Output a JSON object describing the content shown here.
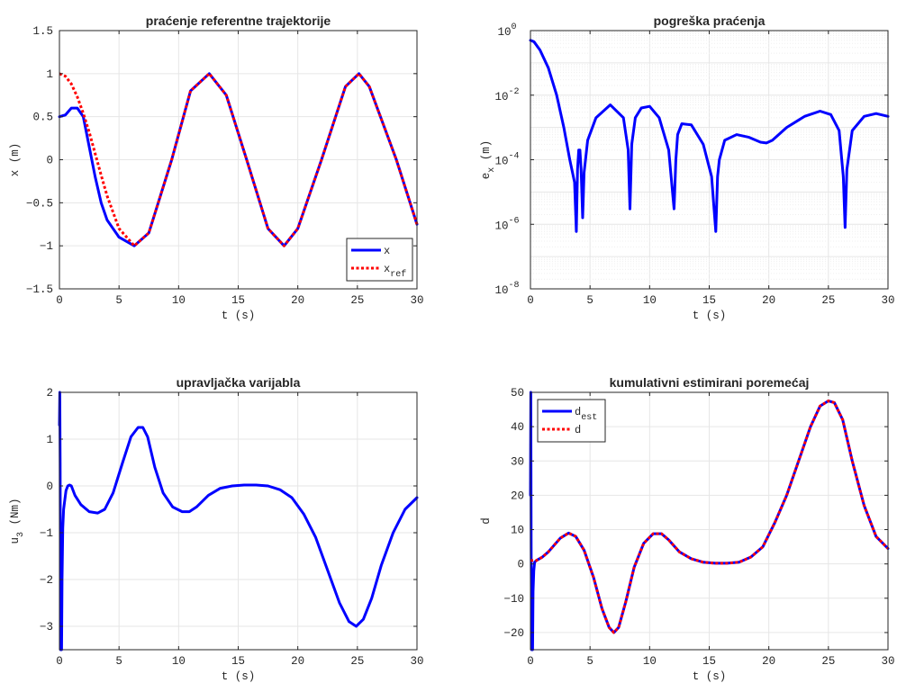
{
  "chart_data": [
    {
      "id": "tracking",
      "type": "line",
      "title": "praćenje referentne trajektorije",
      "xlabel": "t  (s)",
      "ylabel": "x  (m)",
      "xlim": [
        0,
        30
      ],
      "ylim": [
        -1.5,
        1.5
      ],
      "yscale": "linear",
      "xticks": [
        "0",
        "5",
        "10",
        "15",
        "20",
        "25",
        "30"
      ],
      "yticks": [
        "−1.5",
        "−1",
        "−0.5",
        "0",
        "0.5",
        "1",
        "1.5"
      ],
      "grid": true,
      "legend": {
        "location": "bottom-right",
        "entries": [
          "x",
          "x_ref"
        ]
      },
      "series": [
        {
          "name": "x",
          "color": "#0000ff",
          "style": "solid",
          "x": [
            0,
            0.5,
            1.0,
            1.5,
            2.0,
            2.5,
            3.0,
            3.5,
            4.0,
            5.0,
            6.28,
            7.5,
            9.42,
            11.0,
            12.57,
            14.0,
            15.71,
            17.5,
            18.85,
            20.0,
            21.99,
            24.0,
            25.13,
            26.0,
            28.27,
            30.0
          ],
          "y": [
            0.5,
            0.52,
            0.6,
            0.6,
            0.5,
            0.15,
            -0.2,
            -0.5,
            -0.7,
            -0.9,
            -1.0,
            -0.85,
            0.0,
            0.8,
            1.0,
            0.75,
            0.0,
            -0.8,
            -1.0,
            -0.8,
            0.0,
            0.85,
            1.0,
            0.85,
            0.0,
            -0.75
          ]
        },
        {
          "name": "x_ref",
          "color": "#ff0000",
          "style": "dotted",
          "x": [
            0,
            0.5,
            1.0,
            1.5,
            2.0,
            2.5,
            3.0,
            3.5,
            4.0,
            5.0,
            6.28,
            7.5,
            9.42,
            11.0,
            12.57,
            14.0,
            15.71,
            17.5,
            18.85,
            20.0,
            21.99,
            24.0,
            25.13,
            26.0,
            28.27,
            30.0
          ],
          "y": [
            1.0,
            0.97,
            0.88,
            0.73,
            0.54,
            0.32,
            0.07,
            -0.18,
            -0.42,
            -0.8,
            -1.0,
            -0.85,
            0.0,
            0.8,
            1.0,
            0.75,
            0.0,
            -0.8,
            -1.0,
            -0.8,
            0.0,
            0.85,
            1.0,
            0.85,
            0.0,
            -0.75
          ]
        }
      ]
    },
    {
      "id": "error",
      "type": "line",
      "title": "pogreška praćenja",
      "xlabel": "t  (s)",
      "ylabel": "e_x  (m)",
      "xlim": [
        0,
        30
      ],
      "ylim": [
        1e-08,
        1
      ],
      "yscale": "log",
      "xticks": [
        "0",
        "5",
        "10",
        "15",
        "20",
        "25",
        "30"
      ],
      "yticks": [
        "10^-8",
        "10^-6",
        "10^-4",
        "10^-2",
        "10^0"
      ],
      "grid": true,
      "series": [
        {
          "name": "",
          "color": "#0000ff",
          "style": "solid",
          "x": [
            0,
            0.3,
            0.8,
            1.5,
            2.2,
            2.8,
            3.3,
            3.7,
            3.85,
            3.95,
            4.05,
            4.15,
            4.25,
            4.38,
            4.5,
            4.8,
            5.5,
            6.7,
            7.8,
            8.2,
            8.35,
            8.5,
            8.8,
            9.3,
            10.0,
            10.8,
            11.6,
            12.05,
            12.2,
            12.35,
            12.7,
            13.5,
            14.5,
            15.2,
            15.55,
            15.7,
            15.85,
            16.3,
            17.3,
            18.3,
            19.3,
            19.8,
            20.3,
            21.5,
            23.0,
            24.3,
            25.2,
            25.9,
            26.25,
            26.4,
            26.55,
            27.0,
            28.0,
            29.0,
            30.0
          ],
          "y": [
            0.5,
            0.45,
            0.25,
            0.07,
            0.01,
            0.001,
            0.0001,
            2e-05,
            6e-07,
            5e-05,
            0.0002,
            0.0002,
            5e-05,
            1.6e-06,
            4e-05,
            0.0004,
            0.002,
            0.005,
            0.002,
            0.0002,
            3e-06,
            0.0003,
            0.002,
            0.004,
            0.0045,
            0.002,
            0.0002,
            3e-06,
            0.0001,
            0.0006,
            0.0013,
            0.0012,
            0.0003,
            3e-05,
            6e-07,
            3e-05,
            0.0001,
            0.0004,
            0.0006,
            0.0005,
            0.00035,
            0.00033,
            0.0004,
            0.001,
            0.0022,
            0.0032,
            0.0025,
            0.0008,
            3e-05,
            8e-07,
            5e-05,
            0.0008,
            0.0022,
            0.0027,
            0.0022
          ]
        }
      ]
    },
    {
      "id": "control",
      "type": "line",
      "title": "upravljačka varijabla",
      "xlabel": "t  (s)",
      "ylabel": "u_3  (Nm)",
      "xlim": [
        0,
        30
      ],
      "ylim": [
        -3.5,
        2
      ],
      "yscale": "linear",
      "xticks": [
        "0",
        "5",
        "10",
        "15",
        "20",
        "25",
        "30"
      ],
      "yticks": [
        "−3",
        "−2",
        "−1",
        "0",
        "1",
        "2"
      ],
      "grid": true,
      "series": [
        {
          "name": "",
          "color": "#0000ff",
          "style": "solid",
          "x": [
            0,
            0.03,
            0.06,
            0.1,
            0.14,
            0.18,
            0.22,
            0.28,
            0.35,
            0.45,
            0.55,
            0.7,
            0.85,
            1.0,
            1.3,
            1.8,
            2.5,
            3.2,
            3.8,
            4.5,
            5.3,
            6.0,
            6.6,
            7.0,
            7.4,
            8.0,
            8.7,
            9.5,
            10.3,
            10.9,
            11.5,
            12.5,
            13.5,
            14.5,
            15.5,
            16.5,
            17.5,
            18.5,
            19.5,
            20.5,
            21.5,
            22.5,
            23.5,
            24.3,
            24.9,
            25.5,
            26.2,
            27.0,
            28.0,
            29.0,
            30.0
          ],
          "y": [
            1.3,
            2.0,
            0.5,
            -3.5,
            -1.0,
            -3.5,
            -2.0,
            -0.9,
            -0.5,
            -0.3,
            -0.1,
            0.0,
            0.02,
            0.0,
            -0.2,
            -0.4,
            -0.55,
            -0.58,
            -0.5,
            -0.15,
            0.5,
            1.05,
            1.25,
            1.25,
            1.05,
            0.4,
            -0.15,
            -0.45,
            -0.55,
            -0.55,
            -0.45,
            -0.2,
            -0.05,
            0.0,
            0.02,
            0.02,
            0.0,
            -0.08,
            -0.25,
            -0.6,
            -1.1,
            -1.8,
            -2.5,
            -2.9,
            -3.0,
            -2.85,
            -2.4,
            -1.7,
            -1.0,
            -0.5,
            -0.25
          ]
        }
      ]
    },
    {
      "id": "disturbance",
      "type": "line",
      "title": "kumulativni estimirani poremećaj",
      "xlabel": "t  (s)",
      "ylabel": "d",
      "xlim": [
        0,
        30
      ],
      "ylim": [
        -25,
        50
      ],
      "yscale": "linear",
      "xticks": [
        "0",
        "5",
        "10",
        "15",
        "20",
        "25",
        "30"
      ],
      "yticks": [
        "−20",
        "−10",
        "0",
        "10",
        "20",
        "30",
        "40",
        "50"
      ],
      "grid": true,
      "legend": {
        "location": "top-left",
        "entries": [
          "d_est",
          "d"
        ]
      },
      "series": [
        {
          "name": "d_est",
          "color": "#0000ff",
          "style": "solid",
          "x": [
            0,
            0.03,
            0.06,
            0.1,
            0.14,
            0.18,
            0.22,
            0.28,
            0.35,
            0.5,
            1.0,
            1.5,
            2.0,
            2.5,
            3.2,
            3.8,
            4.5,
            5.3,
            6.0,
            6.6,
            7.0,
            7.4,
            8.0,
            8.7,
            9.5,
            10.3,
            11.0,
            11.6,
            12.5,
            13.5,
            14.5,
            15.5,
            16.5,
            17.5,
            18.5,
            19.5,
            20.5,
            21.5,
            22.5,
            23.5,
            24.3,
            25.0,
            25.5,
            26.2,
            27.0,
            28.0,
            29.0,
            30.0
          ],
          "y": [
            20.0,
            50.0,
            5.0,
            -25.0,
            -5.0,
            -25.0,
            -8.0,
            -2.0,
            0.5,
            1.0,
            2.0,
            3.5,
            5.5,
            7.5,
            9.0,
            8.0,
            4.0,
            -4.0,
            -13.0,
            -18.5,
            -20.0,
            -18.5,
            -11.0,
            -1.0,
            6.0,
            8.8,
            8.8,
            7.0,
            3.5,
            1.5,
            0.5,
            0.2,
            0.2,
            0.5,
            2.0,
            5.0,
            12.0,
            20.0,
            30.0,
            40.0,
            46.0,
            47.5,
            47.0,
            42.0,
            30.0,
            17.0,
            8.0,
            4.5
          ]
        },
        {
          "name": "d",
          "color": "#ff0000",
          "style": "dotted",
          "x": [
            0,
            0.5,
            1.0,
            1.5,
            2.0,
            2.5,
            3.2,
            3.8,
            4.5,
            5.3,
            6.0,
            6.6,
            7.0,
            7.4,
            8.0,
            8.7,
            9.5,
            10.3,
            11.0,
            11.6,
            12.5,
            13.5,
            14.5,
            15.5,
            16.5,
            17.5,
            18.5,
            19.5,
            20.5,
            21.5,
            22.5,
            23.5,
            24.3,
            25.0,
            25.5,
            26.2,
            27.0,
            28.0,
            29.0,
            30.0
          ],
          "y": [
            1.0,
            1.0,
            2.0,
            3.5,
            5.5,
            7.5,
            9.0,
            8.0,
            4.0,
            -4.0,
            -13.0,
            -18.5,
            -20.0,
            -18.5,
            -11.0,
            -1.0,
            6.0,
            8.8,
            8.8,
            7.0,
            3.5,
            1.5,
            0.5,
            0.2,
            0.2,
            0.5,
            2.0,
            5.0,
            12.0,
            20.0,
            30.0,
            40.0,
            46.0,
            47.5,
            47.0,
            42.0,
            30.0,
            17.0,
            8.0,
            4.5
          ]
        }
      ]
    }
  ]
}
